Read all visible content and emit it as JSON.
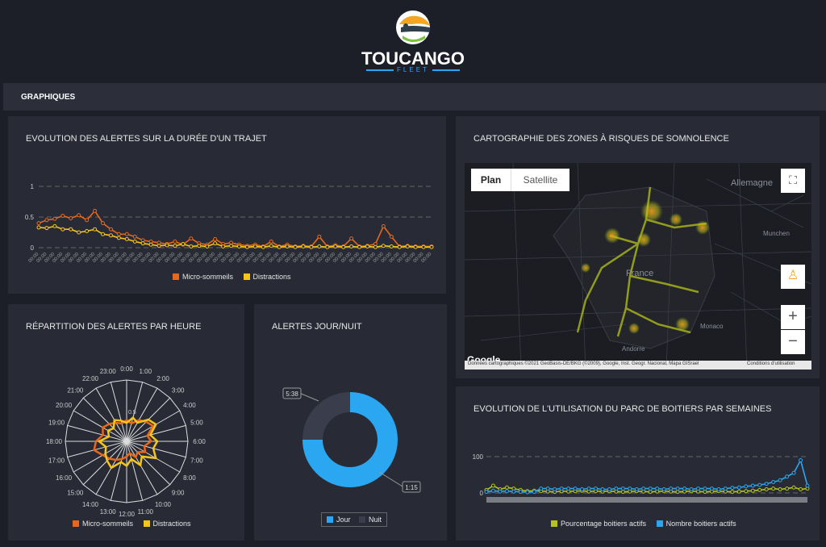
{
  "brand": {
    "name": "TOUCANGO",
    "sub": "FLEET"
  },
  "nav": {
    "title": "GRAPHIQUES"
  },
  "colors": {
    "micro": "#e8671a",
    "distractions": "#f5c518",
    "jour": "#2aa7f0",
    "nuit": "#3a3d4c",
    "pct": "#b8c418",
    "boitiers": "#2aa7f0"
  },
  "panels": {
    "trajet": {
      "title": "EVOLUTION DES ALERTES SUR LA DURÉE D'UN TRAJET",
      "legend": [
        "Micro-sommeils",
        "Distractions"
      ],
      "chart_data": {
        "type": "line",
        "ylim": [
          0,
          1
        ],
        "y_ticks": [
          "0",
          "0.5",
          "1"
        ],
        "x_tick_label": "00:00",
        "series": [
          {
            "name": "Micro-sommeils",
            "values": [
              0.4,
              0.45,
              0.47,
              0.52,
              0.48,
              0.53,
              0.45,
              0.6,
              0.4,
              0.3,
              0.22,
              0.22,
              0.18,
              0.12,
              0.1,
              0.08,
              0.06,
              0.1,
              0.05,
              0.15,
              0.07,
              0.05,
              0.14,
              0.06,
              0.08,
              0.05,
              0.03,
              0.05,
              0.02,
              0.1,
              0.02,
              0.05,
              0.02,
              0.03,
              0.02,
              0.18,
              0.02,
              0.04,
              0.02,
              0.15,
              0.02,
              0.03,
              0.06,
              0.35,
              0.18,
              0.02,
              0.03,
              0.02,
              0.02,
              0.02
            ]
          },
          {
            "name": "Distractions",
            "values": [
              0.33,
              0.32,
              0.35,
              0.3,
              0.3,
              0.25,
              0.27,
              0.3,
              0.22,
              0.2,
              0.16,
              0.14,
              0.1,
              0.07,
              0.05,
              0.03,
              0.04,
              0.03,
              0.06,
              0.02,
              0.03,
              0.02,
              0.07,
              0.02,
              0.03,
              0.02,
              0.01,
              0.02,
              0.01,
              0.03,
              0.01,
              0.02,
              0.01,
              0.02,
              0.01,
              0.02,
              0.01,
              0.02,
              0.01,
              0.02,
              0.01,
              0.02,
              0.01,
              0.03,
              0.02,
              0.01,
              0.02,
              0.01,
              0.01,
              0.01
            ]
          }
        ]
      }
    },
    "carto": {
      "title": "CARTOGRAPHIE DES ZONES À RISQUES DE SOMNOLENCE",
      "tabs": [
        "Plan",
        "Satellite"
      ],
      "labels": [
        "France",
        "Allemagne",
        "Andorre",
        "Monaco",
        "Munchen"
      ],
      "google": "Google",
      "footer": "Données cartographiques ©2021 GeoBasis-DE/BKG (©2009), Google, Inst. Geogr. Nacional, Mapa GISrael",
      "terms": "Conditions d'utilisation",
      "zoom_in": "+",
      "zoom_out": "−"
    },
    "heure": {
      "title": "RÉPARTITION DES ALERTES PAR HEURE",
      "legend": [
        "Micro-sommeils",
        "Distractions"
      ],
      "chart_data": {
        "type": "radar",
        "categories": [
          "0:00",
          "1:00",
          "2:00",
          "3:00",
          "4:00",
          "5:00",
          "6:00",
          "7:00",
          "8:00",
          "9:00",
          "10:00",
          "11:00",
          "12:00",
          "13:00",
          "14:00",
          "15:00",
          "16:00",
          "17:00",
          "18:00",
          "19:00",
          "20:00",
          "21:00",
          "22:00",
          "23:00"
        ],
        "r_tick": "0.5",
        "series": [
          {
            "name": "Micro-sommeils",
            "values": [
              0.35,
              0.3,
              0.4,
              0.45,
              0.5,
              0.35,
              0.4,
              0.3,
              0.35,
              0.25,
              0.3,
              0.2,
              0.25,
              0.3,
              0.35,
              0.4,
              0.45,
              0.55,
              0.5,
              0.4,
              0.45,
              0.4,
              0.35,
              0.3
            ]
          },
          {
            "name": "Distractions",
            "values": [
              0.3,
              0.4,
              0.35,
              0.5,
              0.55,
              0.4,
              0.5,
              0.45,
              0.55,
              0.35,
              0.45,
              0.3,
              0.4,
              0.35,
              0.5,
              0.45,
              0.4,
              0.35,
              0.45,
              0.3,
              0.35,
              0.3,
              0.4,
              0.35
            ]
          }
        ]
      }
    },
    "journuit": {
      "title": "ALERTES JOUR/NUIT",
      "legend": [
        "Jour",
        "Nuit"
      ],
      "chart_data": {
        "type": "pie",
        "categories": [
          "Jour",
          "Nuit"
        ],
        "values": [
          75,
          25
        ],
        "labels": [
          "1:15",
          "5:38"
        ]
      }
    },
    "parc": {
      "title": "EVOLUTION DE L'UTILISATION DU PARC DE BOITIERS PAR SEMAINES",
      "legend": [
        "Pourcentage boitiers actifs",
        "Nombre boitiers actifs"
      ],
      "chart_data": {
        "type": "line",
        "y_ticks": [
          "0",
          "100"
        ],
        "ylim": [
          0,
          100
        ],
        "series": [
          {
            "name": "Pourcentage boitiers actifs",
            "values": [
              8,
              20,
              10,
              15,
              12,
              8,
              5,
              6,
              5,
              4,
              3,
              5,
              4,
              5,
              6,
              4,
              5,
              4,
              5,
              4,
              3,
              4,
              5,
              4,
              3,
              4,
              5,
              4,
              3,
              4,
              5,
              4,
              3,
              4,
              5,
              4,
              3,
              4,
              5,
              6,
              8,
              10,
              12,
              10,
              12,
              15,
              10,
              12
            ]
          },
          {
            "name": "Nombre boitiers actifs",
            "values": [
              3,
              6,
              4,
              5,
              4,
              3,
              2,
              3,
              12,
              12,
              10,
              12,
              12,
              12,
              10,
              12,
              12,
              10,
              10,
              12,
              12,
              12,
              10,
              12,
              12,
              12,
              10,
              12,
              12,
              12,
              10,
              12,
              12,
              12,
              10,
              12,
              14,
              15,
              18,
              20,
              22,
              25,
              30,
              35,
              45,
              55,
              90,
              20
            ]
          }
        ]
      }
    }
  }
}
